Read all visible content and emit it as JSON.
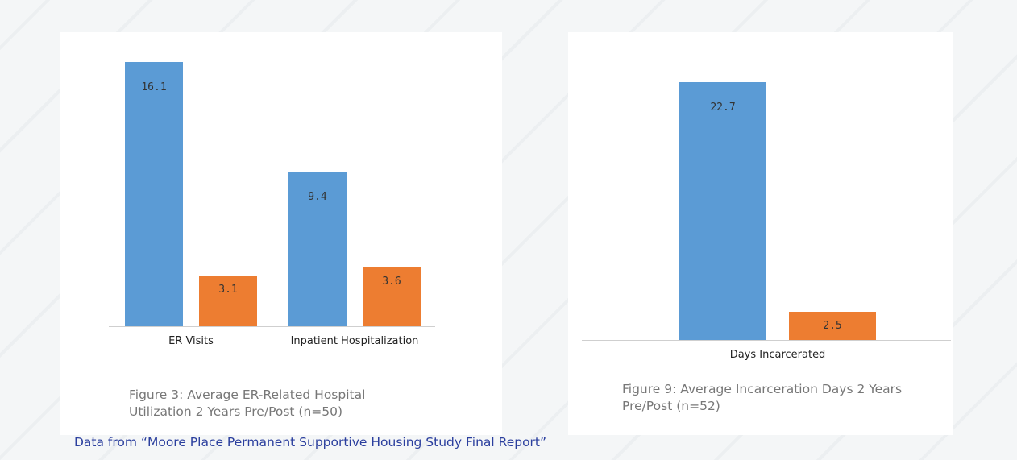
{
  "chart_data": [
    {
      "type": "bar",
      "categories": [
        "ER Visits",
        "Inpatient Hospitalization"
      ],
      "series": [
        {
          "color": "#5b9bd5",
          "values": [
            16.1,
            9.4
          ]
        },
        {
          "color": "#ed7d31",
          "values": [
            3.1,
            3.6
          ]
        }
      ],
      "caption": "Figure 3: Average ER-Related Hospital Utilization 2 Years Pre/Post (n=50)"
    },
    {
      "type": "bar",
      "categories": [
        "Days Incarcerated"
      ],
      "series": [
        {
          "color": "#5b9bd5",
          "values": [
            22.7
          ]
        },
        {
          "color": "#ed7d31",
          "values": [
            2.5
          ]
        }
      ],
      "caption": "Figure 9: Average Incarceration Days 2 Years Pre/Post (n=52)"
    }
  ],
  "source": "Data from “Moore Place Permanent Supportive Housing Study Final Report”"
}
